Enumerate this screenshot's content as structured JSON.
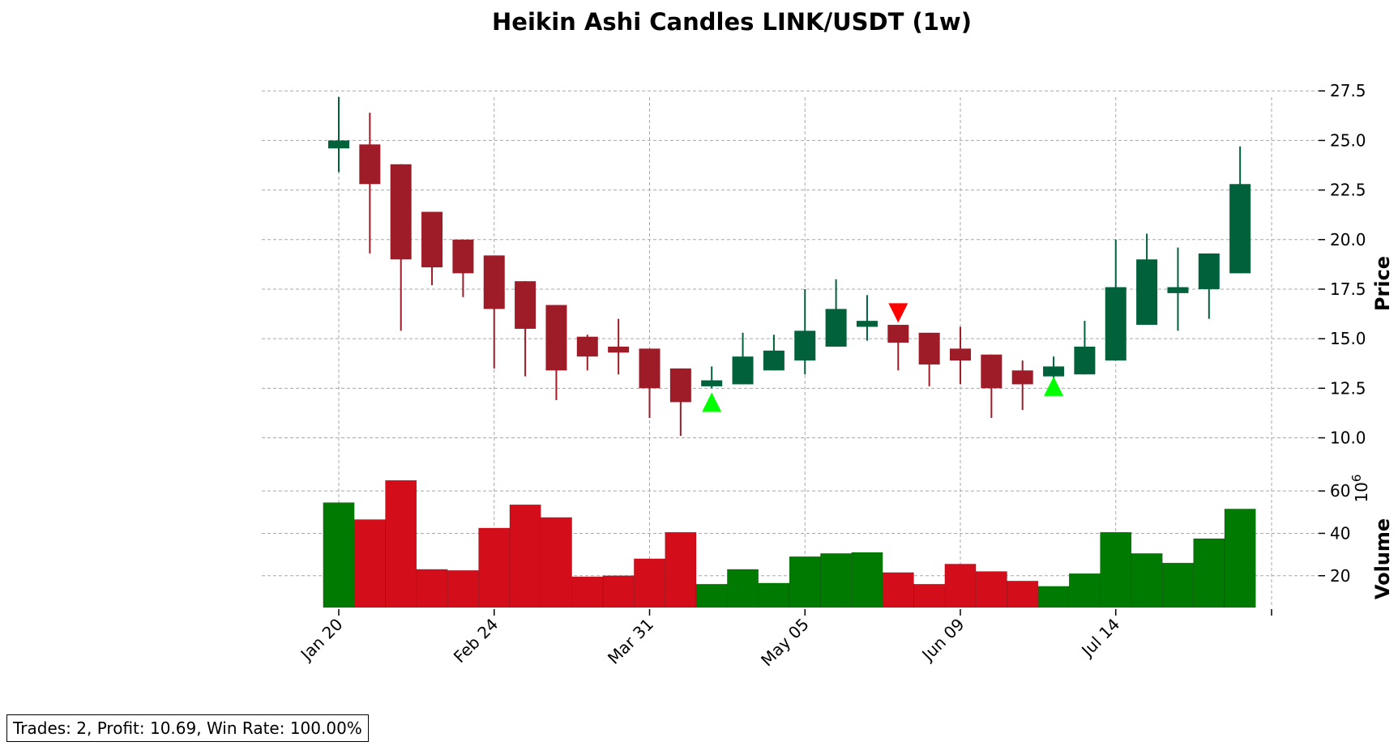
{
  "colors": {
    "up_candle": "#00613b",
    "down_candle": "#9e1c27",
    "up_volume": "#007a00",
    "down_volume": "#d40d1a",
    "buy_marker": "#00ff00",
    "sell_marker": "#ff0000"
  },
  "chart_data": {
    "type": "candlestick",
    "title": "Heikin Ashi Candles LINK/USDT (1w)",
    "price_axis": {
      "label": "Price",
      "ylim": [
        9.0,
        28.0
      ],
      "ticks": [
        "10.0",
        "12.5",
        "15.0",
        "17.5",
        "20.0",
        "22.5",
        "25.0",
        "27.5"
      ],
      "position": "right"
    },
    "volume_axis": {
      "label": "Volume",
      "exponent_label": "1e6",
      "ylim": [
        5,
        70
      ],
      "ticks": [
        "20",
        "40",
        "60"
      ],
      "position": "right"
    },
    "x_ticks": [
      {
        "label": "Jan 20",
        "index": 0
      },
      {
        "label": "Feb 24",
        "index": 5
      },
      {
        "label": "Mar 31",
        "index": 10
      },
      {
        "label": "May 05",
        "index": 15
      },
      {
        "label": "Jun 09",
        "index": 20
      },
      {
        "label": "Jul 14",
        "index": 25
      }
    ],
    "grid": true,
    "candles": [
      {
        "open": 24.6,
        "high": 27.2,
        "low": 23.4,
        "close": 25.0,
        "volume": 54.5
      },
      {
        "open": 24.8,
        "high": 26.4,
        "low": 19.3,
        "close": 22.8,
        "volume": 46.5
      },
      {
        "open": 23.8,
        "high": 23.8,
        "low": 15.4,
        "close": 19.0,
        "volume": 65.0
      },
      {
        "open": 21.4,
        "high": 21.4,
        "low": 17.7,
        "close": 18.6,
        "volume": 23.0
      },
      {
        "open": 20.0,
        "high": 20.0,
        "low": 17.1,
        "close": 18.3,
        "volume": 22.5
      },
      {
        "open": 19.2,
        "high": 19.2,
        "low": 13.5,
        "close": 16.5,
        "volume": 42.5
      },
      {
        "open": 17.9,
        "high": 17.9,
        "low": 13.1,
        "close": 15.5,
        "volume": 53.5
      },
      {
        "open": 16.7,
        "high": 16.7,
        "low": 11.9,
        "close": 13.4,
        "volume": 47.5
      },
      {
        "open": 15.1,
        "high": 15.2,
        "low": 13.4,
        "close": 14.1,
        "volume": 19.5
      },
      {
        "open": 14.6,
        "high": 16.0,
        "low": 13.2,
        "close": 14.3,
        "volume": 20.0
      },
      {
        "open": 14.5,
        "high": 14.5,
        "low": 11.0,
        "close": 12.5,
        "volume": 28.0
      },
      {
        "open": 13.5,
        "high": 13.5,
        "low": 10.1,
        "close": 11.8,
        "volume": 40.5
      },
      {
        "open": 12.6,
        "high": 13.6,
        "low": 12.5,
        "close": 12.9,
        "volume": 16.0
      },
      {
        "open": 12.7,
        "high": 15.3,
        "low": 12.7,
        "close": 14.1,
        "volume": 23.0
      },
      {
        "open": 13.4,
        "high": 15.2,
        "low": 13.4,
        "close": 14.4,
        "volume": 16.5
      },
      {
        "open": 13.9,
        "high": 17.5,
        "low": 13.2,
        "close": 15.4,
        "volume": 29.0
      },
      {
        "open": 14.6,
        "high": 18.0,
        "low": 14.6,
        "close": 16.5,
        "volume": 30.5
      },
      {
        "open": 15.6,
        "high": 17.2,
        "low": 14.9,
        "close": 15.9,
        "volume": 31.0
      },
      {
        "open": 15.7,
        "high": 15.7,
        "low": 13.4,
        "close": 14.8,
        "volume": 21.5
      },
      {
        "open": 15.3,
        "high": 15.3,
        "low": 12.6,
        "close": 13.7,
        "volume": 16.0
      },
      {
        "open": 14.5,
        "high": 15.6,
        "low": 12.7,
        "close": 13.9,
        "volume": 25.5
      },
      {
        "open": 14.2,
        "high": 14.2,
        "low": 11.0,
        "close": 12.5,
        "volume": 22.0
      },
      {
        "open": 13.4,
        "high": 13.9,
        "low": 11.4,
        "close": 12.7,
        "volume": 17.5
      },
      {
        "open": 13.1,
        "high": 14.1,
        "low": 13.0,
        "close": 13.6,
        "volume": 15.0
      },
      {
        "open": 13.2,
        "high": 15.9,
        "low": 13.2,
        "close": 14.6,
        "volume": 21.0
      },
      {
        "open": 13.9,
        "high": 20.0,
        "low": 13.9,
        "close": 17.6,
        "volume": 40.5
      },
      {
        "open": 15.7,
        "high": 20.3,
        "low": 15.7,
        "close": 19.0,
        "volume": 30.5
      },
      {
        "open": 17.3,
        "high": 19.6,
        "low": 15.4,
        "close": 17.6,
        "volume": 26.0
      },
      {
        "open": 17.5,
        "high": 19.3,
        "low": 16.0,
        "close": 19.3,
        "volume": 37.5
      },
      {
        "open": 18.3,
        "high": 24.7,
        "low": 18.3,
        "close": 22.8,
        "volume": 51.5
      }
    ],
    "markers": [
      {
        "type": "buy",
        "index": 12,
        "price": 11.8
      },
      {
        "type": "sell",
        "index": 18,
        "price": 16.3
      },
      {
        "type": "buy",
        "index": 23,
        "price": 12.6
      }
    ]
  },
  "stats": {
    "text": "Trades: 2, Profit: 10.69, Win Rate: 100.00%"
  }
}
